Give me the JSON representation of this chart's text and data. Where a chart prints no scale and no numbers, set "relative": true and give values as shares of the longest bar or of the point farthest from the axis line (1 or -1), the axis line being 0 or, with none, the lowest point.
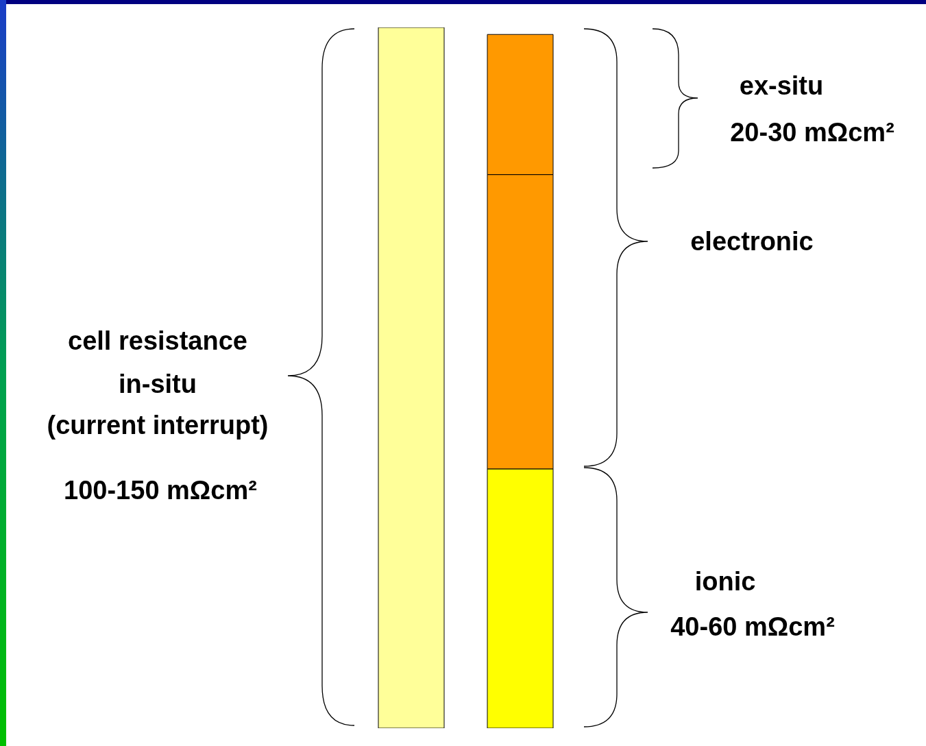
{
  "chart_data": {
    "type": "bar",
    "relative": true,
    "stacked": true,
    "categories": [
      null,
      null
    ],
    "series": [
      {
        "color": "#ffff99",
        "values": [
          1,
          null
        ]
      },
      {
        "color": "#ffff00",
        "values": [
          null,
          0.37
        ]
      },
      {
        "color": "#ff9900",
        "values": [
          null,
          0.42
        ]
      },
      {
        "color": "#ff9900",
        "values": [
          null,
          0.2
        ]
      }
    ],
    "annotations": [
      "cell resistance",
      "in-situ",
      "(current interrupt)",
      "100-150 mΩcm²",
      "ex-situ",
      "20-30 mΩcm²",
      "electronic",
      "ionic",
      "40-60 mΩcm²"
    ]
  }
}
